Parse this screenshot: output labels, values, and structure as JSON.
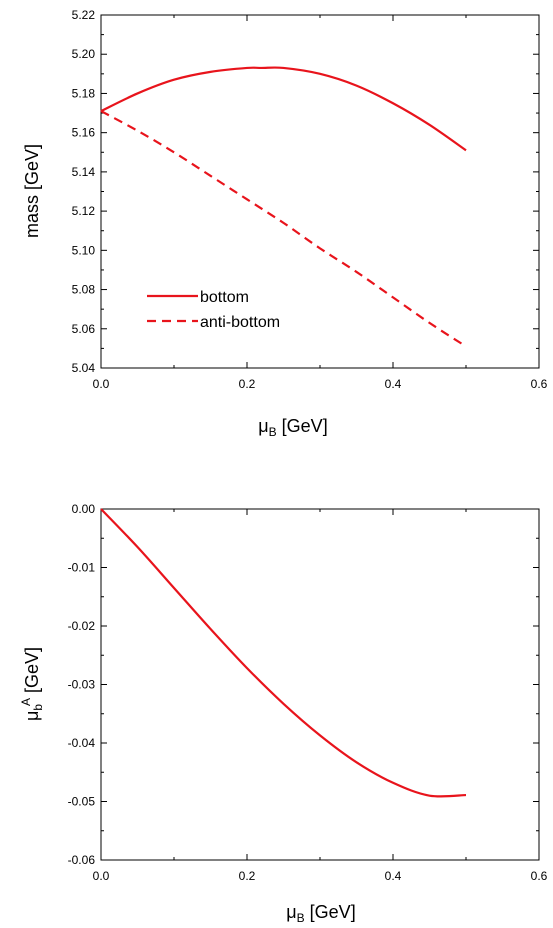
{
  "chart_data": [
    {
      "type": "line",
      "ylabel": "mass [GeV]",
      "xlabel_main": "μ",
      "xlabel_sub": "B",
      "xlabel_unit": "[GeV]",
      "xlim": [
        0.0,
        0.6
      ],
      "ylim": [
        5.04,
        5.22
      ],
      "xticks": [
        "0.0",
        "0.2",
        "0.4",
        "0.6"
      ],
      "yticks": [
        "5.04",
        "5.06",
        "5.08",
        "5.10",
        "5.12",
        "5.14",
        "5.16",
        "5.18",
        "5.20",
        "5.22"
      ],
      "legend_position": "bottom-left",
      "series": [
        {
          "name": "bottom",
          "style": "solid",
          "color": "#e8141c",
          "x": [
            0.0,
            0.05,
            0.1,
            0.15,
            0.2,
            0.22,
            0.25,
            0.3,
            0.35,
            0.4,
            0.45,
            0.5
          ],
          "y": [
            5.171,
            5.18,
            5.187,
            5.191,
            5.193,
            5.193,
            5.193,
            5.19,
            5.184,
            5.175,
            5.164,
            5.151
          ]
        },
        {
          "name": "anti-bottom",
          "style": "dashed",
          "color": "#e8141c",
          "x": [
            0.0,
            0.05,
            0.1,
            0.15,
            0.2,
            0.25,
            0.3,
            0.35,
            0.4,
            0.45,
            0.5
          ],
          "y": [
            5.171,
            5.161,
            5.15,
            5.138,
            5.126,
            5.114,
            5.101,
            5.089,
            5.076,
            5.063,
            5.051
          ]
        }
      ]
    },
    {
      "type": "line",
      "ylabel_main": "μ",
      "ylabel_sub": "b",
      "ylabel_sup": "A",
      "ylabel_unit": "[GeV]",
      "xlabel_main": "μ",
      "xlabel_sub": "B",
      "xlabel_unit": "[GeV]",
      "xlim": [
        0.0,
        0.6
      ],
      "ylim": [
        -0.06,
        0.0
      ],
      "xticks": [
        "0.0",
        "0.2",
        "0.4",
        "0.6"
      ],
      "yticks": [
        "-0.06",
        "-0.05",
        "-0.04",
        "-0.03",
        "-0.02",
        "-0.01",
        "0.00"
      ],
      "series": [
        {
          "style": "solid",
          "color": "#e8141c",
          "x": [
            0.0,
            0.05,
            0.1,
            0.15,
            0.2,
            0.25,
            0.3,
            0.35,
            0.4,
            0.45,
            0.5
          ],
          "y": [
            0.0,
            -0.0065,
            -0.0135,
            -0.0205,
            -0.0272,
            -0.0333,
            -0.0387,
            -0.0433,
            -0.0468,
            -0.049,
            -0.0489
          ]
        }
      ]
    }
  ]
}
